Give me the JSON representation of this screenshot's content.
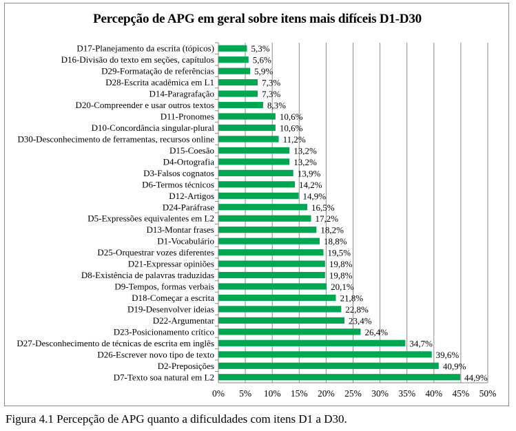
{
  "chart_data": {
    "type": "bar",
    "orientation": "horizontal",
    "title": "Percepção de APG em geral sobre itens mais difíceis D1-D30",
    "xlabel": "",
    "ylabel": "",
    "xlim": [
      0,
      50
    ],
    "x_ticks": [
      "0%",
      "5%",
      "10%",
      "15%",
      "20%",
      "25%",
      "30%",
      "35%",
      "40%",
      "45%",
      "50%"
    ],
    "grid": "vertical",
    "bar_color": "#00a651",
    "categories": [
      "D17-Planejamento da escrita (tópicos)",
      "D16-Divisão do texto em seções, capítulos",
      "D29-Formatação de referências",
      "D28-Escrita acadêmica em L1",
      "D14-Paragrafação",
      "D20-Compreender e usar outros textos",
      "D11-Pronomes",
      "D10-Concordância singular-plural",
      "D30-Desconhecimento de ferramentas, recursos online",
      "D15-Coesão",
      "D4-Ortografia",
      "D3-Falsos cognatos",
      "D6-Termos técnicos",
      "D12-Artigos",
      "D24-Paráfrase",
      "D5-Expressões equivalentes em L2",
      "D13-Montar frases",
      "D1-Vocabulário",
      "D25-Orquestrar vozes diferentes",
      "D21-Expressar opiniões",
      "D8-Existência de palavras traduzidas",
      "D9-Tempos, formas verbais",
      "D18-Começar a escrita",
      "D19-Desenvolver ideias",
      "D22-Argumentar",
      "D23-Posicionamento crítico",
      "D27-Desconhecimento de técnicas de escrita em inglês",
      "D26-Escrever novo tipo de texto",
      "D2-Preposições",
      "D7-Texto soa natural em L2"
    ],
    "values": [
      5.3,
      5.6,
      5.9,
      7.3,
      7.3,
      8.3,
      10.6,
      10.6,
      11.2,
      13.2,
      13.2,
      13.9,
      14.2,
      14.9,
      16.5,
      17.2,
      18.2,
      18.8,
      19.5,
      19.8,
      19.8,
      20.1,
      21.8,
      22.8,
      23.4,
      26.4,
      34.7,
      39.6,
      40.9,
      44.9
    ],
    "data_labels": [
      "5,3%",
      "5,6%",
      "5,9%",
      "7,3%",
      "7,3%",
      "8,3%",
      "10,6%",
      "10,6%",
      "11,2%",
      "13,2%",
      "13,2%",
      "13,9%",
      "14,2%",
      "14,9%",
      "16,5%",
      "17,2%",
      "18,2%",
      "18,8%",
      "19,5%",
      "19,8%",
      "19,8%",
      "20,1%",
      "21,8%",
      "22,8%",
      "23,4%",
      "26,4%",
      "34,7%",
      "39,6%",
      "40,9%",
      "44,9%"
    ]
  },
  "caption": "Figura 4.1 Percepção de APG quanto a dificuldades com itens D1 a D30."
}
